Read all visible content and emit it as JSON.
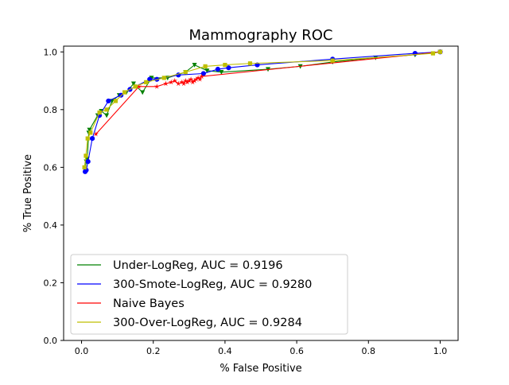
{
  "chart_data": {
    "type": "line",
    "title": "Mammography ROC",
    "xlabel": "% False Positive",
    "ylabel": "% True Positive",
    "xlim": [
      -0.05,
      1.05
    ],
    "ylim": [
      0.0,
      1.02
    ],
    "xticks": [
      0.0,
      0.2,
      0.4,
      0.6,
      0.8,
      1.0
    ],
    "xtick_labels": [
      "0.0",
      "0.2",
      "0.4",
      "0.6",
      "0.8",
      "1.0"
    ],
    "yticks": [
      0.0,
      0.2,
      0.4,
      0.6,
      0.8,
      1.0
    ],
    "ytick_labels": [
      "0.0",
      "0.2",
      "0.4",
      "0.6",
      "0.8",
      "1.0"
    ],
    "grid": false,
    "legend_position": "lower-left",
    "series": [
      {
        "name": "Under-LogReg, AUC = 0.9196",
        "color": "#008000",
        "marker": "triangle-down",
        "x": [
          0.01,
          0.013,
          0.016,
          0.02,
          0.022,
          0.045,
          0.055,
          0.07,
          0.085,
          0.105,
          0.125,
          0.145,
          0.17,
          0.195,
          0.24,
          0.29,
          0.315,
          0.35,
          0.39,
          0.52,
          0.61,
          0.7,
          0.82,
          0.93,
          1.0
        ],
        "y": [
          0.59,
          0.62,
          0.63,
          0.72,
          0.73,
          0.78,
          0.795,
          0.78,
          0.83,
          0.85,
          0.86,
          0.89,
          0.86,
          0.91,
          0.91,
          0.93,
          0.955,
          0.935,
          0.93,
          0.94,
          0.95,
          0.965,
          0.98,
          0.99,
          1.0
        ]
      },
      {
        "name": "300-Smote-LogReg, AUC = 0.9280",
        "color": "#0000ff",
        "marker": "circle",
        "x": [
          0.01,
          0.013,
          0.018,
          0.03,
          0.05,
          0.075,
          0.11,
          0.135,
          0.19,
          0.21,
          0.27,
          0.34,
          0.38,
          0.41,
          0.49,
          0.7,
          0.93,
          1.0
        ],
        "y": [
          0.585,
          0.59,
          0.62,
          0.7,
          0.78,
          0.83,
          0.85,
          0.87,
          0.905,
          0.905,
          0.92,
          0.925,
          0.94,
          0.945,
          0.955,
          0.975,
          0.995,
          1.0
        ]
      },
      {
        "name": "Naive Bayes",
        "color": "#ff0000",
        "marker": "star",
        "x": [
          0.04,
          0.16,
          0.21,
          0.235,
          0.25,
          0.26,
          0.27,
          0.28,
          0.285,
          0.29,
          0.295,
          0.3,
          0.305,
          0.31,
          0.315,
          0.32,
          0.325,
          0.33,
          0.335,
          1.0
        ],
        "y": [
          0.715,
          0.88,
          0.88,
          0.89,
          0.895,
          0.9,
          0.89,
          0.895,
          0.89,
          0.9,
          0.895,
          0.9,
          0.905,
          0.895,
          0.9,
          0.905,
          0.91,
          0.905,
          0.915,
          1.0
        ]
      },
      {
        "name": "300-Over-LogReg, AUC = 0.9284",
        "color": "#bfbf00",
        "marker": "square",
        "x": [
          0.008,
          0.012,
          0.017,
          0.025,
          0.05,
          0.07,
          0.095,
          0.12,
          0.15,
          0.18,
          0.23,
          0.29,
          0.345,
          0.4,
          0.47,
          0.7,
          0.98,
          1.0
        ],
        "y": [
          0.6,
          0.64,
          0.7,
          0.72,
          0.79,
          0.8,
          0.83,
          0.86,
          0.88,
          0.895,
          0.91,
          0.93,
          0.95,
          0.955,
          0.96,
          0.97,
          0.995,
          1.0
        ]
      }
    ]
  }
}
